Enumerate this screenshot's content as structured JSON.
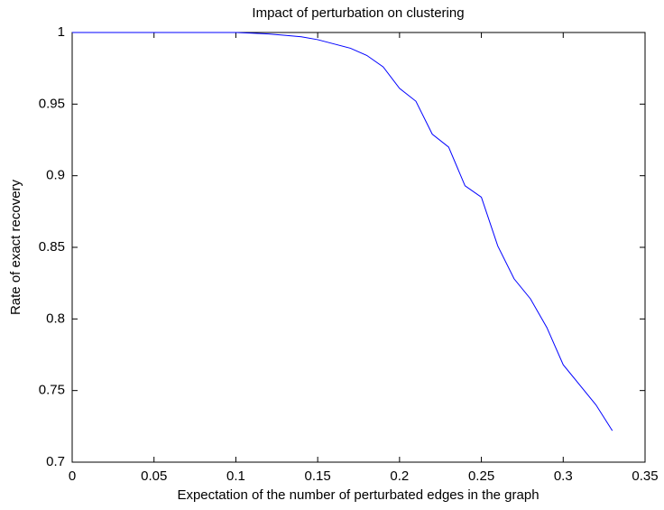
{
  "chart_data": {
    "type": "line",
    "title": "Impact of perturbation on clustering",
    "x_label": "Expectation of the number of perturbated edges in the graph",
    "y_label": "Rate of exact recovery",
    "x": [
      0,
      0.01,
      0.02,
      0.03,
      0.04,
      0.05,
      0.06,
      0.07,
      0.08,
      0.09,
      0.1,
      0.11,
      0.12,
      0.13,
      0.14,
      0.15,
      0.16,
      0.17,
      0.18,
      0.19,
      0.2,
      0.21,
      0.22,
      0.23,
      0.24,
      0.25,
      0.26,
      0.27,
      0.28,
      0.29,
      0.3,
      0.31,
      0.32,
      0.33
    ],
    "series": [
      {
        "color": "#0000ff",
        "values": [
          1,
          1,
          1,
          1,
          1,
          1,
          1,
          1,
          1,
          1,
          1,
          0.9995,
          0.999,
          0.998,
          0.997,
          0.995,
          0.992,
          0.989,
          0.984,
          0.976,
          0.961,
          0.952,
          0.929,
          0.92,
          0.893,
          0.885,
          0.851,
          0.828,
          0.814,
          0.794,
          0.768,
          0.754,
          0.74,
          0.722
        ]
      }
    ],
    "xlim": [
      0,
      0.35
    ],
    "xticks": [
      0,
      0.05,
      0.1,
      0.15,
      0.2,
      0.25,
      0.3,
      0.35
    ],
    "ylim": [
      0.7,
      1
    ],
    "yticks": [
      0.7,
      0.75,
      0.8,
      0.85,
      0.9,
      0.95,
      1
    ],
    "grid": false
  }
}
